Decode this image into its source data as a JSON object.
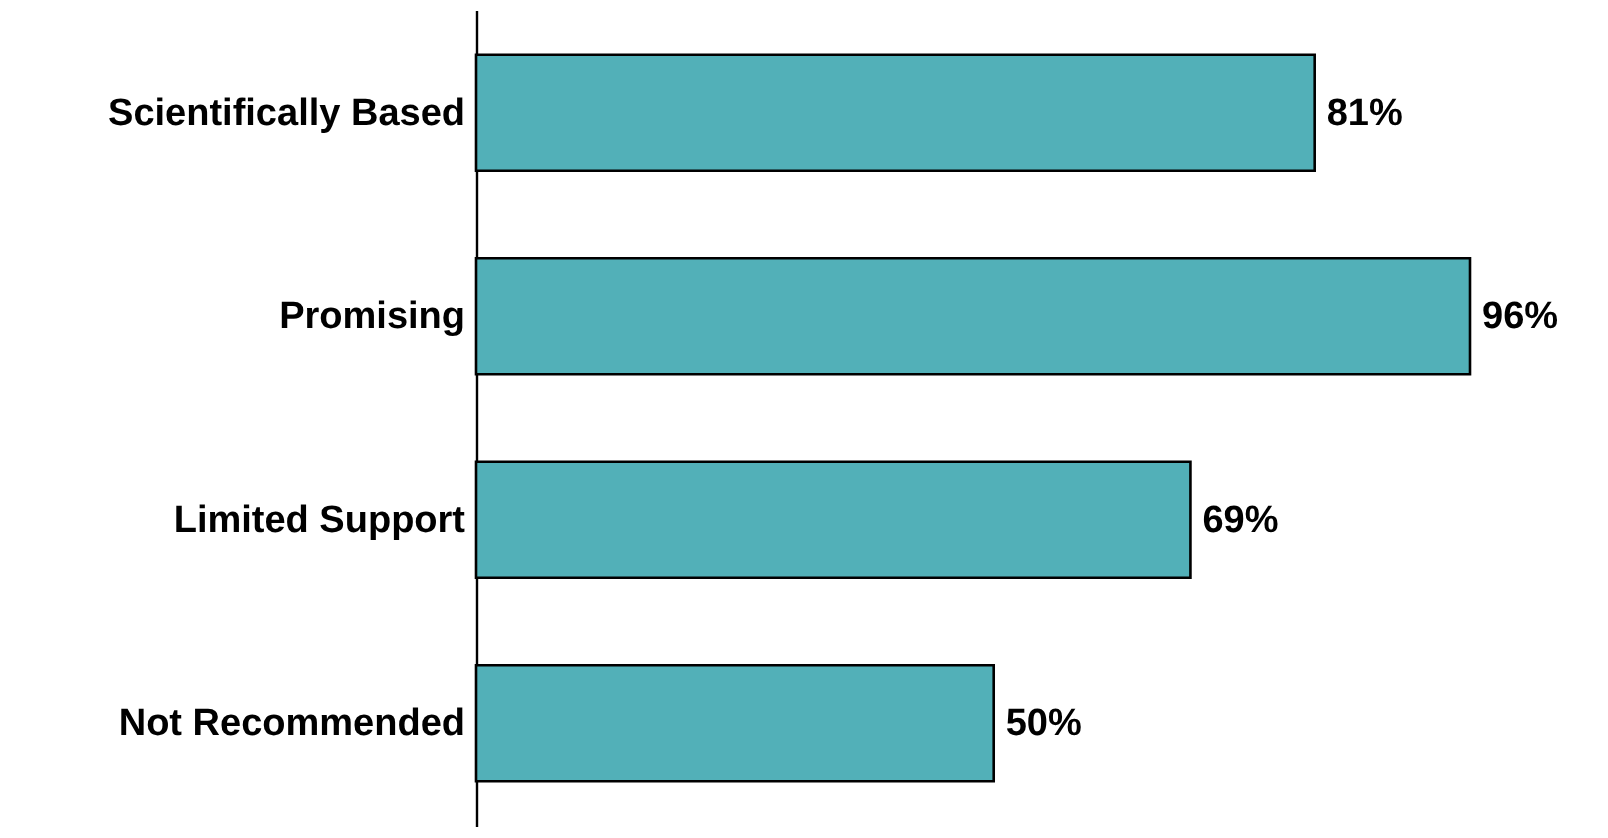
{
  "chart_data": {
    "type": "bar",
    "orientation": "horizontal",
    "categories": [
      "Scientifically Based",
      "Promising",
      "Limited Support",
      "Not Recommended"
    ],
    "values": [
      81,
      96,
      69,
      50
    ],
    "value_labels": [
      "81%",
      "96%",
      "69%",
      "50%"
    ],
    "color": "#52b0b8",
    "grid": false
  }
}
